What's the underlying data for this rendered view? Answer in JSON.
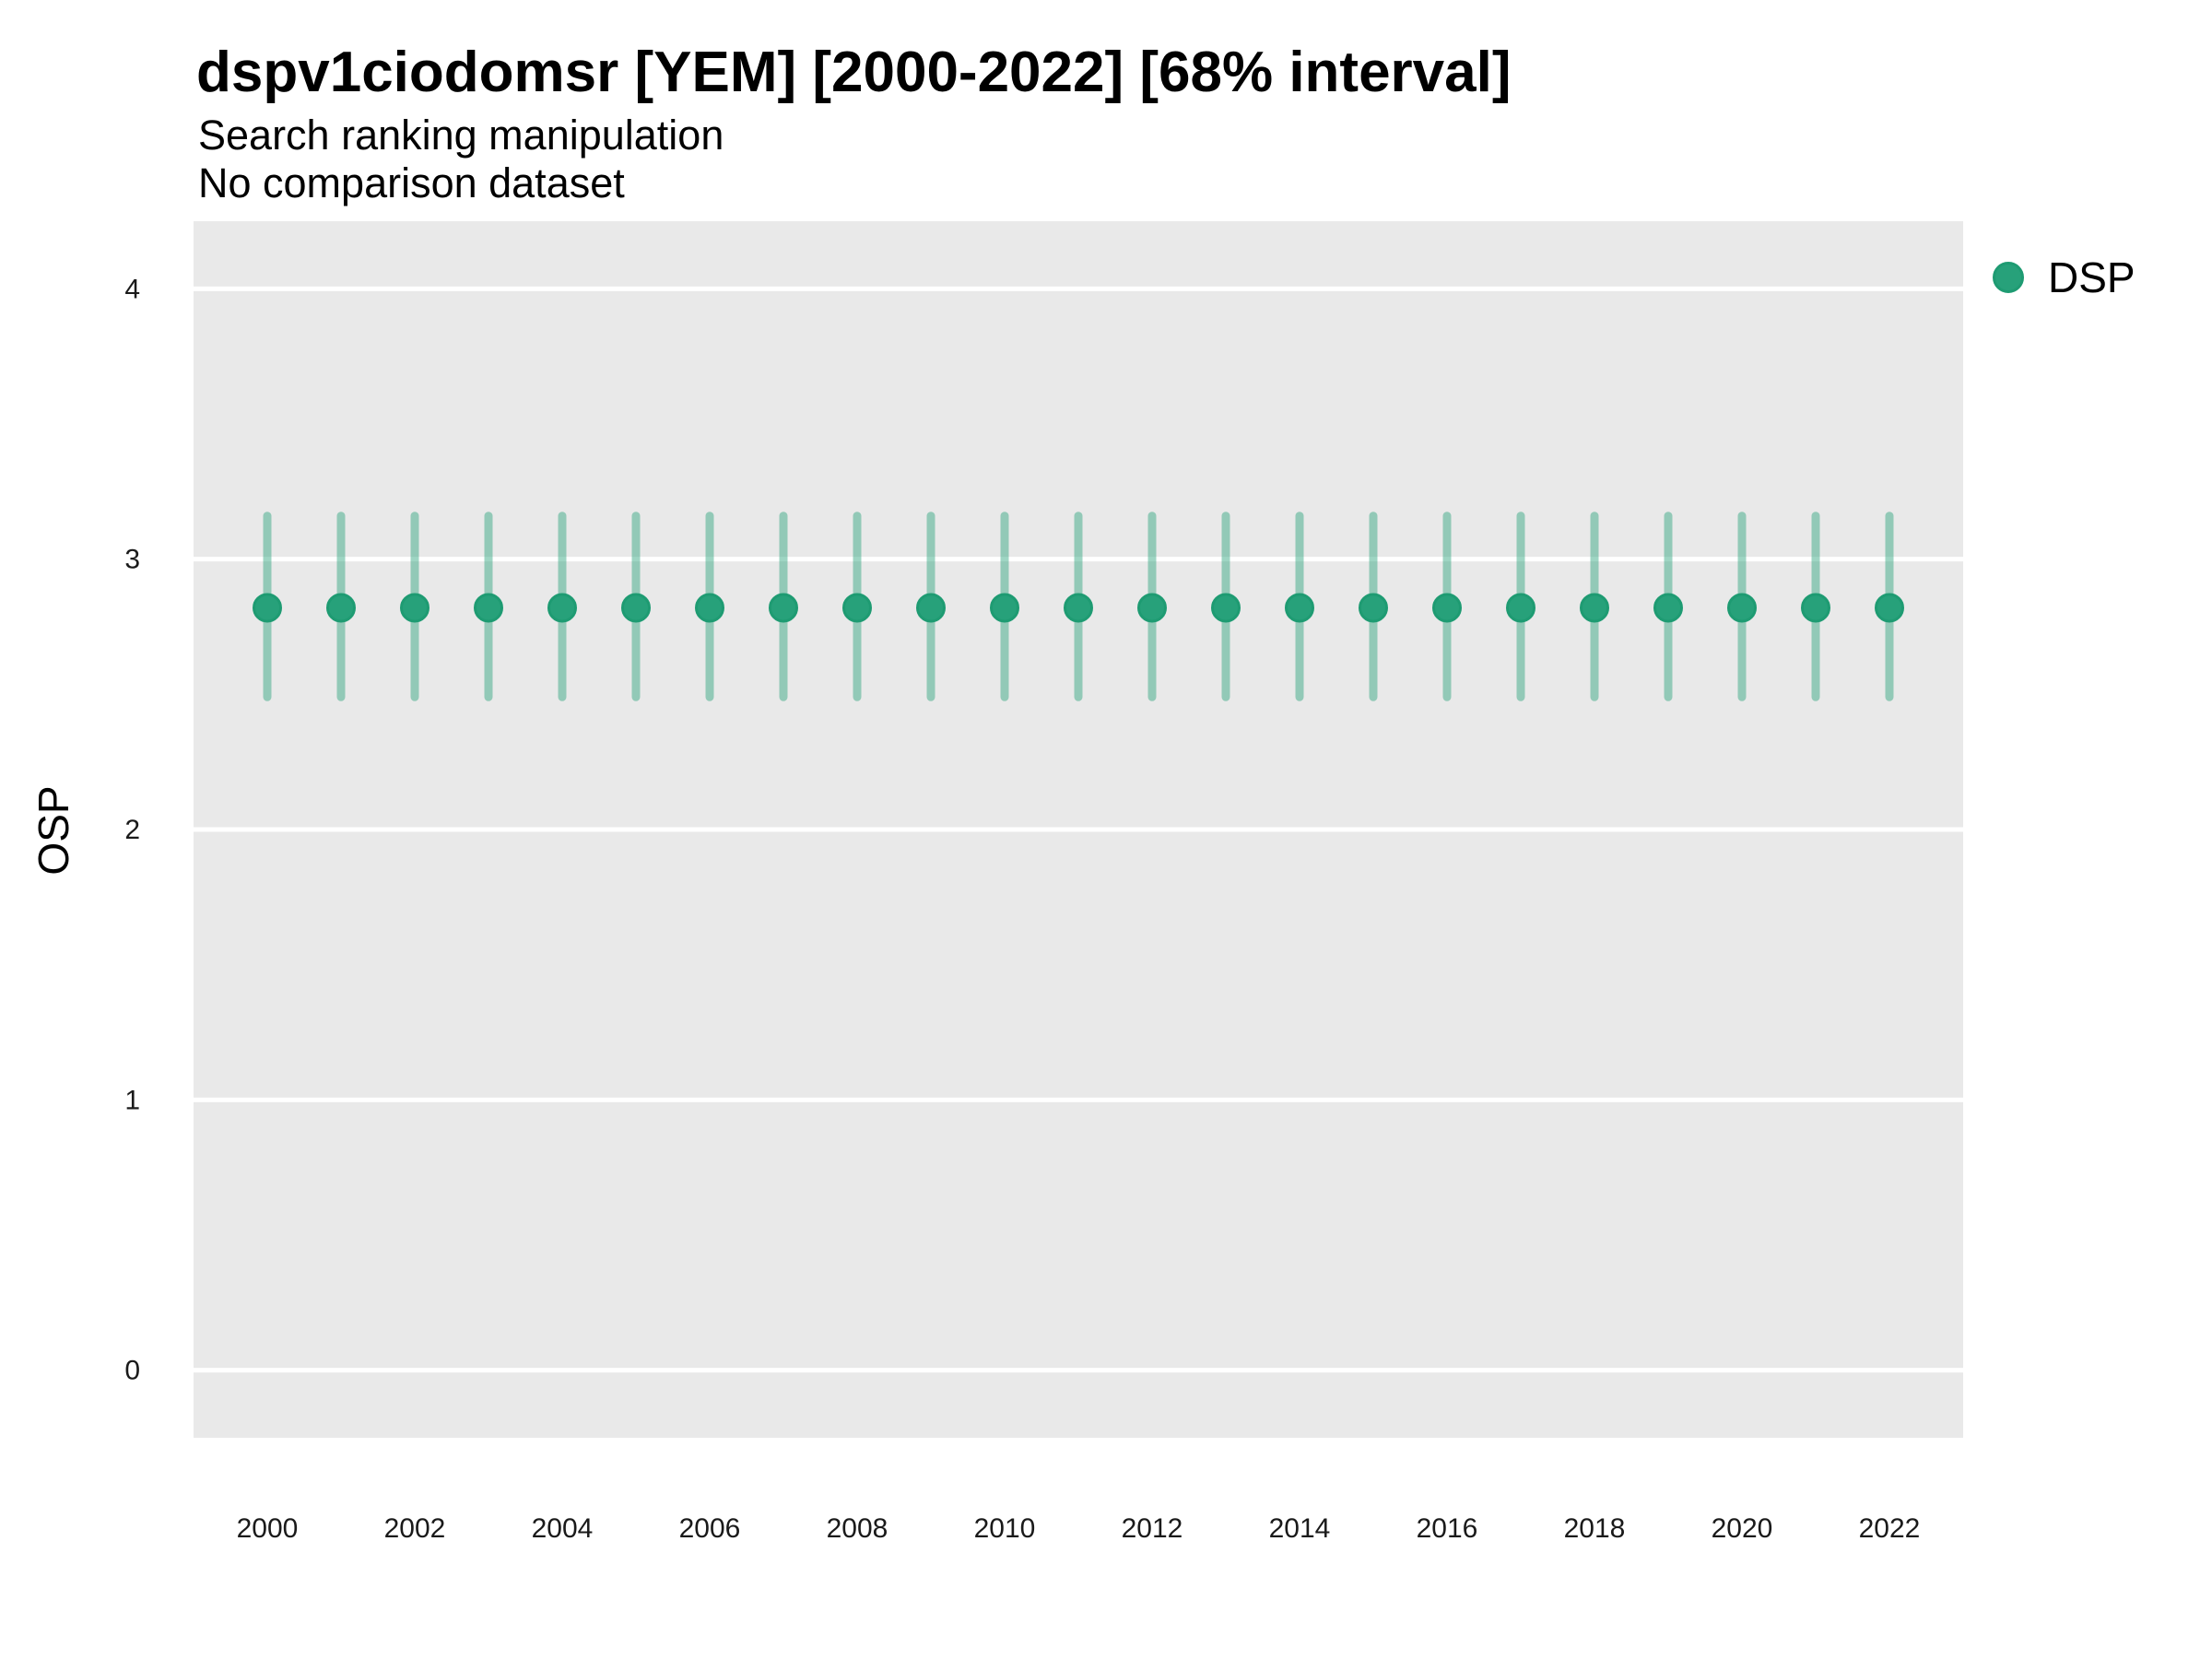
{
  "colors": {
    "page_bg": "#ffffff",
    "panel_bg": "#e9e9e9",
    "gridline": "#ffffff",
    "point_fill": "#27a17a",
    "point_stroke": "#1e9b72",
    "errorbar": "rgba(39,161,122,0.45)",
    "tick_text": "#1a1a1a",
    "text": "#000000"
  },
  "chart_data": {
    "type": "scatter",
    "title": "dspv1ciodomsr [YEM] [2000-2022] [68% interval]",
    "subtitle": "Search ranking manipulation",
    "caption": "No comparison dataset",
    "xlabel": "",
    "ylabel": "OSP",
    "interval_label": "68% interval",
    "x": [
      2000,
      2001,
      2002,
      2003,
      2004,
      2005,
      2006,
      2007,
      2008,
      2009,
      2010,
      2011,
      2012,
      2013,
      2014,
      2015,
      2016,
      2017,
      2018,
      2019,
      2020,
      2021,
      2022
    ],
    "series": [
      {
        "name": "DSP",
        "mean": [
          2.82,
          2.82,
          2.82,
          2.82,
          2.82,
          2.82,
          2.82,
          2.82,
          2.82,
          2.82,
          2.82,
          2.82,
          2.82,
          2.82,
          2.82,
          2.82,
          2.82,
          2.82,
          2.82,
          2.82,
          2.82,
          2.82,
          2.82
        ],
        "lower_68": [
          2.49,
          2.49,
          2.49,
          2.49,
          2.49,
          2.49,
          2.49,
          2.49,
          2.49,
          2.49,
          2.49,
          2.49,
          2.49,
          2.49,
          2.49,
          2.49,
          2.49,
          2.49,
          2.49,
          2.49,
          2.49,
          2.49,
          2.49
        ],
        "upper_68": [
          3.16,
          3.16,
          3.16,
          3.16,
          3.16,
          3.16,
          3.16,
          3.16,
          3.16,
          3.16,
          3.16,
          3.16,
          3.16,
          3.16,
          3.16,
          3.16,
          3.16,
          3.16,
          3.16,
          3.16,
          3.16,
          3.16,
          3.16
        ]
      }
    ],
    "x_ticks": [
      2000,
      2002,
      2004,
      2006,
      2008,
      2010,
      2012,
      2014,
      2016,
      2018,
      2020,
      2022
    ],
    "y_ticks": [
      0,
      1,
      2,
      3,
      4
    ],
    "xlim": [
      1999,
      2023
    ],
    "ylim": [
      -0.25,
      4.25
    ],
    "grid": "major-horizontal-only",
    "legend_position": "right"
  }
}
